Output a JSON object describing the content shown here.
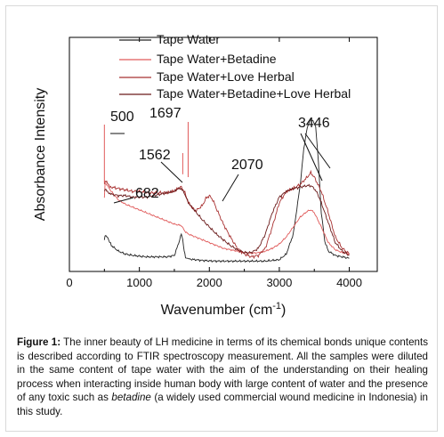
{
  "chart_data": {
    "type": "line",
    "xlabel": "Wavenumber (cm",
    "xlabel_sup": "-1",
    "xlabel_end": ")",
    "ylabel": "Absorbance Intensity",
    "xlim": [
      0,
      4400
    ],
    "ylim": [
      0,
      1
    ],
    "y_ticks_labeled": false,
    "grid": false,
    "legend_position": "top",
    "x_ticks": [
      {
        "value": 0,
        "label": "0"
      },
      {
        "value": 1000,
        "label": "1000"
      },
      {
        "value": 2000,
        "label": "2000"
      },
      {
        "value": 3000,
        "label": "3000"
      },
      {
        "value": 4000,
        "label": "4000"
      }
    ],
    "series": [
      {
        "name": "Tape Water",
        "color": "#222222",
        "x": [
          500,
          510,
          540,
          600,
          700,
          800,
          900,
          1000,
          1100,
          1200,
          1300,
          1400,
          1500,
          1550,
          1600,
          1620,
          1640,
          1660,
          1700,
          1800,
          1900,
          2000,
          2100,
          2200,
          2300,
          2400,
          2500,
          2600,
          2700,
          2800,
          2900,
          3000,
          3100,
          3200,
          3300,
          3350,
          3400,
          3440,
          3480,
          3520,
          3560,
          3600,
          3650,
          3700,
          3800,
          3900,
          4000
        ],
        "y": [
          0.16,
          0.19,
          0.18,
          0.12,
          0.08,
          0.06,
          0.05,
          0.045,
          0.04,
          0.04,
          0.04,
          0.04,
          0.05,
          0.12,
          0.2,
          0.16,
          0.08,
          0.04,
          0.025,
          0.02,
          0.015,
          0.012,
          0.01,
          0.01,
          0.01,
          0.01,
          0.01,
          0.01,
          0.01,
          0.01,
          0.015,
          0.02,
          0.06,
          0.2,
          0.55,
          0.8,
          0.95,
          1.0,
          1.0,
          0.95,
          0.7,
          0.35,
          0.15,
          0.08,
          0.05,
          0.04,
          0.03
        ]
      },
      {
        "name": "Tape Water+Betadine",
        "color": "#e05a5a",
        "x": [
          500,
          510,
          600,
          700,
          800,
          900,
          1000,
          1100,
          1200,
          1300,
          1400,
          1500,
          1600,
          1650,
          1700,
          1800,
          1900,
          2000,
          2100,
          2200,
          2300,
          2400,
          2500,
          2600,
          2700,
          2800,
          2900,
          3000,
          3100,
          3200,
          3300,
          3400,
          3450,
          3500,
          3600,
          3700,
          3800,
          3900,
          4000
        ],
        "y": [
          0.45,
          0.56,
          0.5,
          0.44,
          0.41,
          0.39,
          0.37,
          0.35,
          0.33,
          0.31,
          0.29,
          0.27,
          0.26,
          0.22,
          0.2,
          0.18,
          0.16,
          0.14,
          0.12,
          0.1,
          0.09,
          0.08,
          0.07,
          0.065,
          0.07,
          0.08,
          0.1,
          0.13,
          0.18,
          0.25,
          0.32,
          0.36,
          0.37,
          0.35,
          0.25,
          0.14,
          0.09,
          0.07,
          0.06
        ]
      },
      {
        "name": "Tape Water+Love Herbal",
        "color": "#a83030",
        "x": [
          500,
          510,
          600,
          700,
          800,
          900,
          1000,
          1100,
          1200,
          1300,
          1400,
          1500,
          1550,
          1600,
          1650,
          1700,
          1800,
          1900,
          1950,
          2000,
          2050,
          2100,
          2200,
          2300,
          2400,
          2500,
          2600,
          2700,
          2800,
          2900,
          3000,
          3100,
          3200,
          3300,
          3400,
          3450,
          3500,
          3550,
          3600,
          3700,
          3800,
          3900,
          4000
        ],
        "y": [
          0.55,
          0.57,
          0.53,
          0.52,
          0.51,
          0.5,
          0.5,
          0.49,
          0.49,
          0.49,
          0.49,
          0.5,
          0.52,
          0.53,
          0.49,
          0.42,
          0.36,
          0.4,
          0.45,
          0.47,
          0.44,
          0.38,
          0.27,
          0.18,
          0.1,
          0.06,
          0.04,
          0.05,
          0.1,
          0.25,
          0.42,
          0.5,
          0.52,
          0.55,
          0.6,
          0.63,
          0.6,
          0.55,
          0.5,
          0.35,
          0.18,
          0.1,
          0.06
        ]
      },
      {
        "name": "Tape Water+Betadine+Love Herbal",
        "color": "#6a1a1a",
        "x": [
          500,
          510,
          600,
          700,
          800,
          900,
          1000,
          1100,
          1200,
          1300,
          1400,
          1500,
          1550,
          1600,
          1650,
          1700,
          1800,
          1900,
          2000,
          2100,
          2200,
          2300,
          2400,
          2500,
          2600,
          2700,
          2800,
          2900,
          3000,
          3100,
          3200,
          3300,
          3400,
          3450,
          3500,
          3550,
          3600,
          3700,
          3800,
          3900,
          4000
        ],
        "y": [
          0.5,
          0.51,
          0.48,
          0.47,
          0.47,
          0.46,
          0.46,
          0.46,
          0.47,
          0.48,
          0.49,
          0.5,
          0.52,
          0.52,
          0.48,
          0.42,
          0.36,
          0.3,
          0.25,
          0.2,
          0.16,
          0.12,
          0.09,
          0.07,
          0.07,
          0.1,
          0.2,
          0.35,
          0.46,
          0.5,
          0.52,
          0.53,
          0.54,
          0.54,
          0.52,
          0.48,
          0.42,
          0.28,
          0.14,
          0.08,
          0.05
        ]
      }
    ],
    "annotations": [
      {
        "text": "500",
        "x": 500,
        "arrow": false
      },
      {
        "text": "1697",
        "x": 1697,
        "arrow": false
      },
      {
        "text": "1562",
        "x": 1562,
        "arrow": false
      },
      {
        "text": "682",
        "x": 682,
        "arrow": false
      },
      {
        "text": "2070",
        "x": 2070,
        "arrow": true
      },
      {
        "text": "3446",
        "x": 3446,
        "arrow": true
      }
    ]
  },
  "caption": {
    "label": "Figure 1:",
    "text_before_italic": " The inner beauty of LH medicine in terms of its chemical bonds unique contents is described according to FTIR spectroscopy measurement. All the samples were diluted in the same content of tape water with the aim of the understanding on their healing process when interacting inside human body with large content of water and the presence of any toxic such as ",
    "italic": "betadine",
    "text_after_italic": " (a widely used commercial wound medicine in Indonesia) in this study."
  }
}
